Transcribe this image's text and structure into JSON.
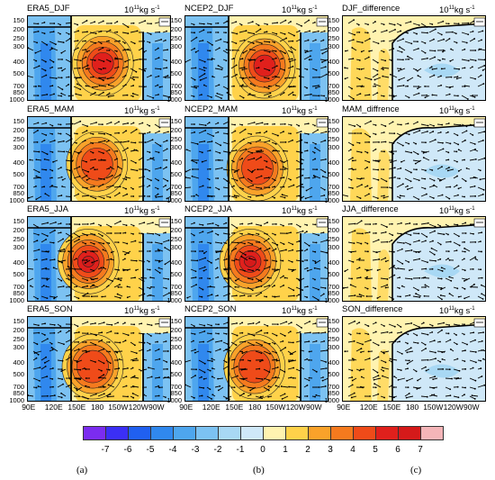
{
  "chart_data": [
    {
      "type": "heatmap",
      "title": "ERA5_DJF",
      "units": "10^11 kg s^-1",
      "center": [
        0.52,
        0.55
      ],
      "pattern": "strong",
      "col": 0,
      "row": 0
    },
    {
      "type": "heatmap",
      "title": "NCEP2_DJF",
      "units": "10^11 kg s^-1",
      "center": [
        0.55,
        0.58
      ],
      "pattern": "strong",
      "col": 1,
      "row": 0
    },
    {
      "type": "heatmap",
      "title": "DJF_difference",
      "units": "10^11 kg s^-1",
      "pattern": "diff",
      "col": 2,
      "row": 0
    },
    {
      "type": "heatmap",
      "title": "ERA5_MAM",
      "units": "10^11 kg s^-1",
      "center": [
        0.48,
        0.55
      ],
      "pattern": "medium",
      "col": 0,
      "row": 1
    },
    {
      "type": "heatmap",
      "title": "NCEP2_MAM",
      "units": "10^11 kg s^-1",
      "center": [
        0.5,
        0.6
      ],
      "pattern": "medium",
      "col": 1,
      "row": 1
    },
    {
      "type": "heatmap",
      "title": "MAM_diffrence",
      "units": "10^11 kg s^-1",
      "pattern": "diff",
      "col": 2,
      "row": 1
    },
    {
      "type": "heatmap",
      "title": "ERA5_JJA",
      "units": "10^11 kg s^-1",
      "center": [
        0.42,
        0.52
      ],
      "pattern": "peak",
      "col": 0,
      "row": 2
    },
    {
      "type": "heatmap",
      "title": "NCEP2_JJA",
      "units": "10^11 kg s^-1",
      "center": [
        0.45,
        0.52
      ],
      "pattern": "peak",
      "col": 1,
      "row": 2
    },
    {
      "type": "heatmap",
      "title": "JJA_difference",
      "units": "10^11 kg s^-1",
      "pattern": "diff",
      "col": 2,
      "row": 2
    },
    {
      "type": "heatmap",
      "title": "ERA5_SON",
      "units": "10^11 kg s^-1",
      "center": [
        0.45,
        0.58
      ],
      "pattern": "medium",
      "col": 0,
      "row": 3
    },
    {
      "type": "heatmap",
      "title": "NCEP2_SON",
      "units": "10^11 kg s^-1",
      "center": [
        0.48,
        0.58
      ],
      "pattern": "medium",
      "col": 1,
      "row": 3
    },
    {
      "type": "heatmap",
      "title": "SON_difference",
      "units": "10^11 kg s^-1",
      "pattern": "diff",
      "col": 2,
      "row": 3
    }
  ],
  "y_levels": [
    "150",
    "200",
    "250",
    "300",
    "400",
    "500",
    "700",
    "850",
    "1000"
  ],
  "x_ticks": [
    "90E",
    "120E",
    "150E",
    "180",
    "150W",
    "120W",
    "90W"
  ],
  "colorbar": {
    "labels": [
      "-7",
      "-6",
      "-5",
      "-4",
      "-3",
      "-2",
      "-1",
      "0",
      "1",
      "2",
      "3",
      "4",
      "5",
      "6",
      "7"
    ],
    "colors": [
      "#7b2cf0",
      "#3b2ff5",
      "#2060f0",
      "#3088ee",
      "#4ea6ee",
      "#7cc2f2",
      "#a8d8f4",
      "#cfe8f8",
      "#fff3b0",
      "#ffd24a",
      "#f9a22a",
      "#f57a1e",
      "#ef4b19",
      "#e0201c",
      "#d51a1a",
      "#f4b5b8"
    ]
  },
  "column_labels": [
    "(a)",
    "(b)",
    "(c)"
  ]
}
